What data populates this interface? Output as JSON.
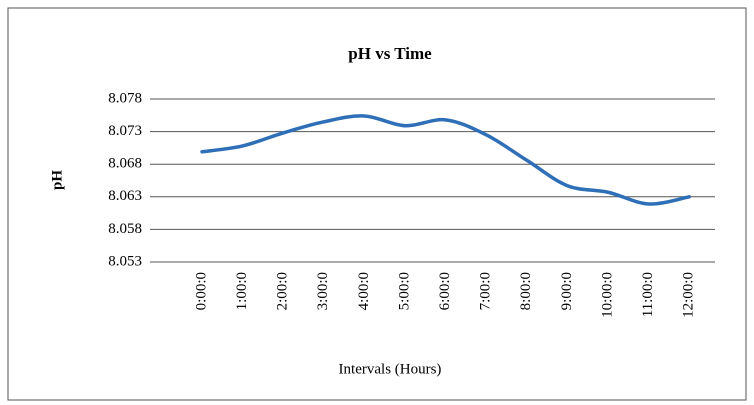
{
  "chart_data": {
    "type": "line",
    "title": "pH vs Time",
    "xlabel": "Intervals (Hours)",
    "ylabel": "pH",
    "categories": [
      "0:00:0",
      "1:00:0",
      "2:00:0",
      "3:00:0",
      "4:00:0",
      "5:00:0",
      "6:00:0",
      "7:00:0",
      "8:00:0",
      "9:00:0",
      "10:00:0",
      "11:00:0",
      "12:00:0"
    ],
    "series": [
      {
        "name": "pH",
        "color": "#2e6fb7",
        "values": [
          8.0699,
          8.0708,
          8.0728,
          8.0745,
          8.0754,
          8.0739,
          8.0748,
          8.0725,
          8.0686,
          8.0647,
          8.0637,
          8.0619,
          8.063
        ]
      }
    ],
    "ylim": [
      8.053,
      8.078
    ],
    "yticks": [
      8.053,
      8.058,
      8.063,
      8.068,
      8.073,
      8.078
    ],
    "grid": true,
    "smooth": true
  }
}
